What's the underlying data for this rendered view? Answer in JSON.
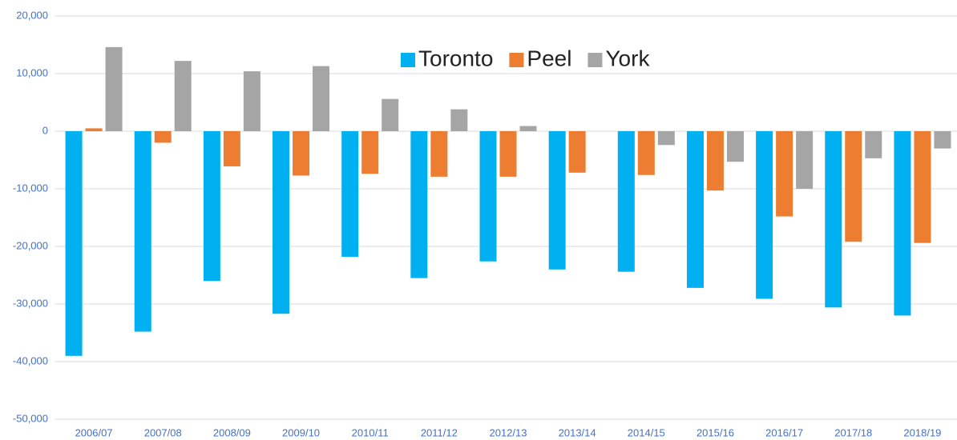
{
  "chart_data": {
    "type": "bar",
    "categories": [
      "2006/07",
      "2007/08",
      "2008/09",
      "2009/10",
      "2010/11",
      "2011/12",
      "2012/13",
      "2013/14",
      "2014/15",
      "2015/16",
      "2016/17",
      "2017/18",
      "2018/19"
    ],
    "series": [
      {
        "name": "Toronto",
        "color": "#00b0f0",
        "values": [
          -39000,
          -34800,
          -26000,
          -31700,
          -21800,
          -25500,
          -22600,
          -24000,
          -24400,
          -27200,
          -29100,
          -30600,
          -32000
        ]
      },
      {
        "name": "Peel",
        "color": "#ed7d31",
        "values": [
          500,
          -2000,
          -6100,
          -7700,
          -7400,
          -7900,
          -7900,
          -7200,
          -7600,
          -10300,
          -14800,
          -19200,
          -19400
        ]
      },
      {
        "name": "York",
        "color": "#a5a5a5",
        "values": [
          14600,
          12200,
          10400,
          11300,
          5600,
          3800,
          900,
          0,
          -2400,
          -5300,
          -10000,
          -4700,
          -3000
        ]
      }
    ],
    "ylim": [
      -50000,
      20000
    ],
    "yticks": [
      {
        "value": -50000,
        "label": "-50,000"
      },
      {
        "value": -40000,
        "label": "-40,000"
      },
      {
        "value": -30000,
        "label": "-30,000"
      },
      {
        "value": -20000,
        "label": "-20,000"
      },
      {
        "value": -10000,
        "label": "-10,000"
      },
      0,
      {
        "value": 10000,
        "label": "10,000"
      },
      {
        "value": 20000,
        "label": "20,000"
      }
    ],
    "grid": true,
    "legend": "top"
  }
}
